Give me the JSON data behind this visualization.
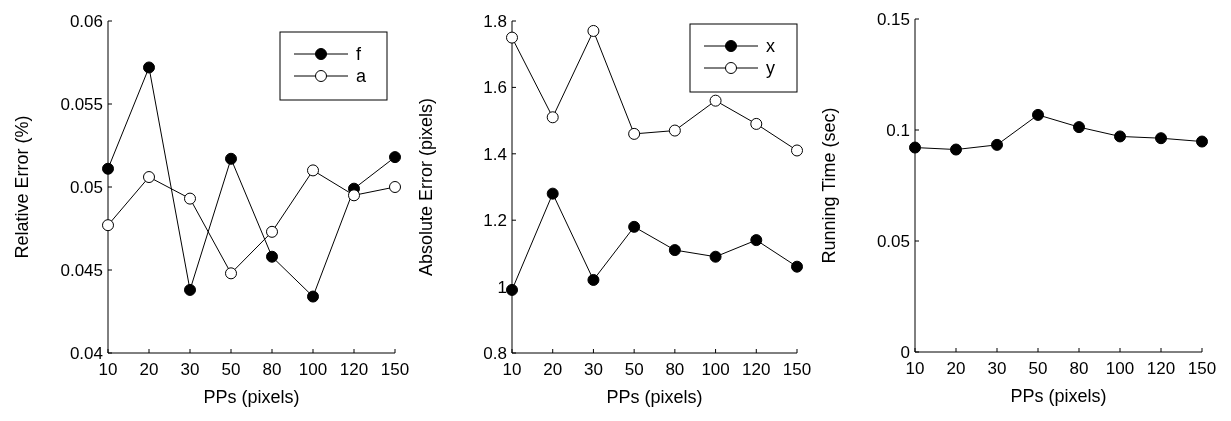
{
  "chart_data": [
    {
      "type": "line",
      "xlabel": "PPs (pixels)",
      "ylabel": "Relative Error (%)",
      "categories": [
        "10",
        "20",
        "30",
        "50",
        "80",
        "100",
        "120",
        "150"
      ],
      "ylim": [
        0.04,
        0.06
      ],
      "yticks": [
        0.04,
        0.045,
        0.05,
        0.055,
        0.06
      ],
      "marker": "circle",
      "legend": "top right",
      "series": [
        {
          "name": "f",
          "color": "#000000",
          "values": [
            0.0511,
            0.0572,
            0.0438,
            0.0517,
            0.0458,
            0.0434,
            0.0499,
            0.0518
          ]
        },
        {
          "name": "a",
          "color": "#000000",
          "values": [
            0.0477,
            0.0506,
            0.0493,
            0.0448,
            0.0473,
            0.051,
            0.0495,
            0.05
          ]
        }
      ]
    },
    {
      "type": "line",
      "xlabel": "PPs (pixels)",
      "ylabel": "Absolute Error (pixels)",
      "categories": [
        "10",
        "20",
        "30",
        "50",
        "80",
        "100",
        "120",
        "150"
      ],
      "ylim": [
        0.8,
        1.8
      ],
      "yticks": [
        0.8,
        1,
        1.2,
        1.4,
        1.6,
        1.8
      ],
      "marker": "circle",
      "legend": "top right",
      "series": [
        {
          "name": "x",
          "color": "#000000",
          "values": [
            0.99,
            1.28,
            1.02,
            1.18,
            1.11,
            1.09,
            1.14,
            1.06
          ]
        },
        {
          "name": "y",
          "color": "#000000",
          "values": [
            1.75,
            1.51,
            1.77,
            1.46,
            1.47,
            1.56,
            1.49,
            1.41
          ]
        }
      ]
    },
    {
      "type": "line",
      "xlabel": "PPs (pixels)",
      "ylabel": "Running Time (sec)",
      "categories": [
        "10",
        "20",
        "30",
        "50",
        "80",
        "100",
        "120",
        "150"
      ],
      "ylim": [
        0,
        0.15
      ],
      "yticks": [
        0,
        0.05,
        0.1,
        0.15
      ],
      "marker": "circle",
      "series": [
        {
          "color": "#000000",
          "values": [
            0.0921,
            0.0912,
            0.0933,
            0.1068,
            0.1013,
            0.0971,
            0.0963,
            0.0948
          ]
        }
      ]
    }
  ]
}
